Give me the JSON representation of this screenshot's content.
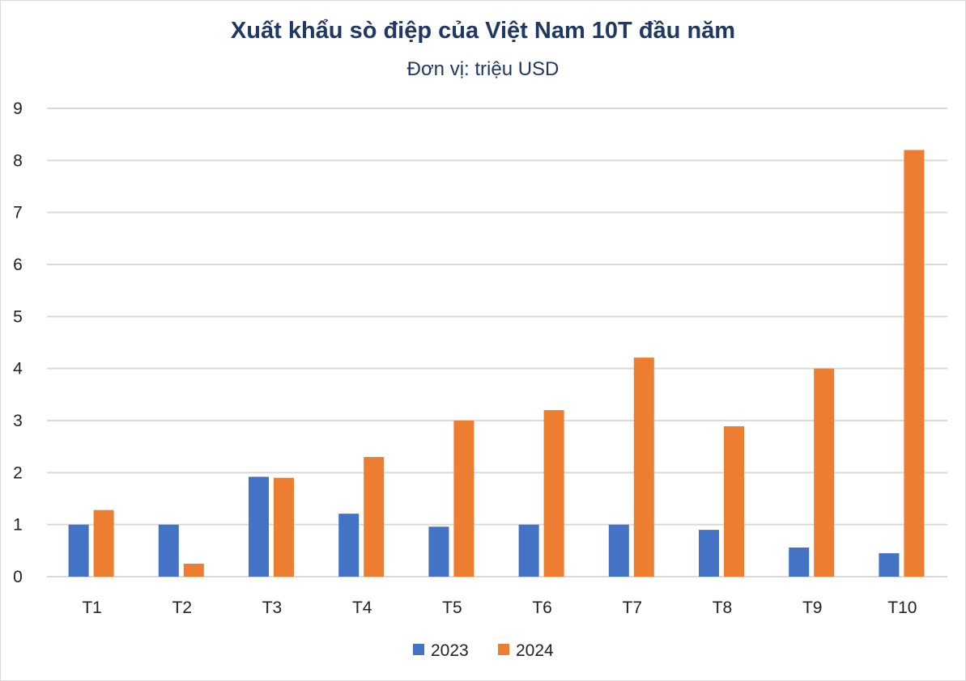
{
  "chart_data": {
    "type": "bar",
    "title": "Xuất khẩu sò điệp của Việt Nam 10T đầu năm",
    "subtitle": "Đơn vị: triệu USD",
    "categories": [
      "T1",
      "T2",
      "T3",
      "T4",
      "T5",
      "T6",
      "T7",
      "T8",
      "T9",
      "T10"
    ],
    "series": [
      {
        "name": "2023",
        "color": "#4472c4",
        "values": [
          1.0,
          1.0,
          1.92,
          1.21,
          0.96,
          1.0,
          1.0,
          0.9,
          0.56,
          0.45
        ]
      },
      {
        "name": "2024",
        "color": "#ed7d31",
        "values": [
          1.28,
          0.25,
          1.9,
          2.3,
          3.0,
          3.2,
          4.21,
          2.89,
          4.0,
          8.2
        ]
      }
    ],
    "ylim": [
      0,
      9
    ],
    "yticks": [
      0,
      1,
      2,
      3,
      4,
      5,
      6,
      7,
      8,
      9
    ],
    "grid": true,
    "legend": "bottom"
  }
}
